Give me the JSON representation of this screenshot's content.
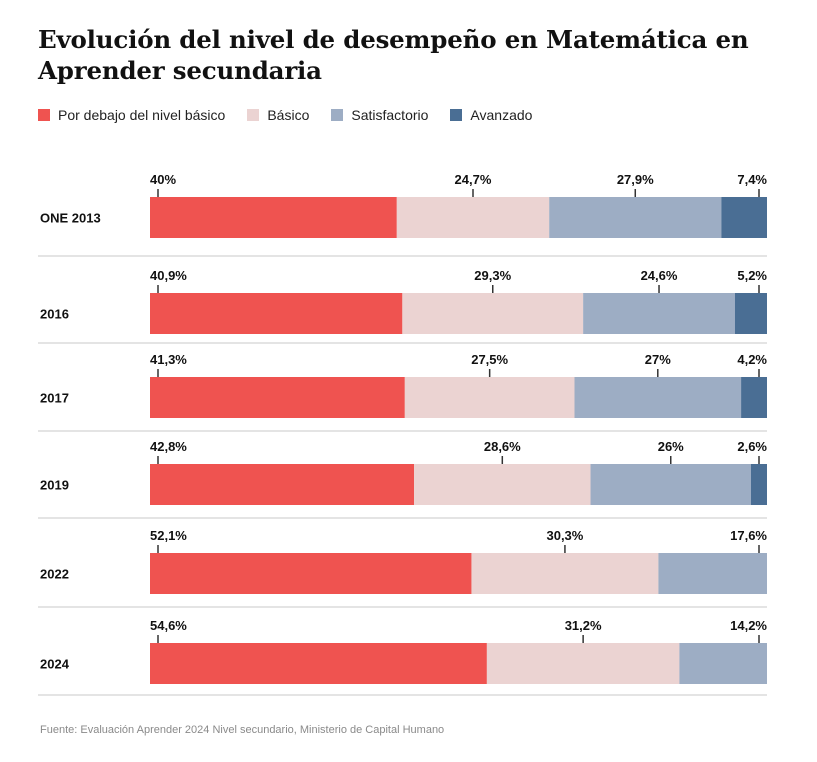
{
  "title": "Evolución del nivel de desempeño en Matemática en Aprender secundaria",
  "source": "Fuente: Evaluación Aprender 2024 Nivel secundario, Ministerio de Capital Humano",
  "colors": {
    "below_basic": "#ef5350",
    "basic": "#ebd3d2",
    "satisfactory": "#9dadc4",
    "advanced": "#4a6e94",
    "separator": "#c8c8c8",
    "tick": "#333333"
  },
  "legend": [
    {
      "label": "Por debajo del nivel básico",
      "color": "#ef5350"
    },
    {
      "label": "Básico",
      "color": "#ebd3d2"
    },
    {
      "label": "Satisfactorio",
      "color": "#9dadc4"
    },
    {
      "label": "Avanzado",
      "color": "#4a6e94"
    }
  ],
  "chart_data": {
    "type": "bar",
    "orientation": "horizontal",
    "stacked": true,
    "title": "Evolución del nivel de desempeño en Matemática en Aprender secundaria",
    "xlim": [
      0,
      100
    ],
    "categories": [
      "ONE 2013",
      "2016",
      "2017",
      "2019",
      "2022",
      "2024"
    ],
    "series": [
      {
        "name": "Por debajo del nivel básico",
        "values": [
          40,
          40.9,
          41.3,
          42.8,
          52.1,
          54.6
        ],
        "labels": [
          "40%",
          "40,9%",
          "41,3%",
          "42,8%",
          "52,1%",
          "54,6%"
        ]
      },
      {
        "name": "Básico",
        "values": [
          24.7,
          29.3,
          27.5,
          28.6,
          30.3,
          31.2
        ],
        "labels": [
          "24,7%",
          "29,3%",
          "27,5%",
          "28,6%",
          "30,3%",
          "31,2%"
        ]
      },
      {
        "name": "Satisfactorio",
        "values": [
          27.9,
          24.6,
          27,
          26,
          17.6,
          14.2
        ],
        "labels": [
          "27,9%",
          "24,6%",
          "27%",
          "26%",
          "17,6%",
          "14,2%"
        ]
      },
      {
        "name": "Avanzado",
        "values": [
          7.4,
          5.2,
          4.2,
          2.6,
          0,
          0
        ],
        "labels": [
          "7,4%",
          "5,2%",
          "4,2%",
          "2,6%",
          "",
          ""
        ]
      }
    ],
    "grid": false,
    "legend_position": "top-left"
  }
}
